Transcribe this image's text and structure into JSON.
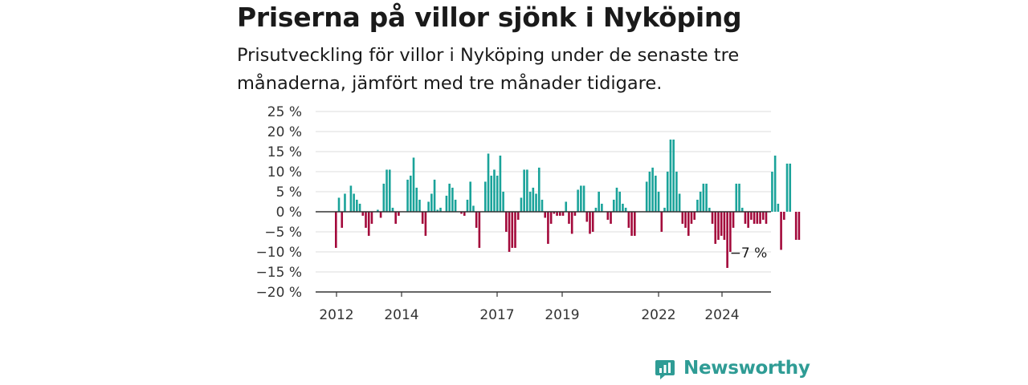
{
  "header": {
    "title": "Priserna på villor sjönk i Nyköping",
    "subtitle": "Prisutveckling för villor i Nyköping under de senaste tre månaderna, jämfört med tre månader tidigare."
  },
  "brand": {
    "name": "Newsworthy",
    "icon": "newsworthy-logo-icon",
    "color": "#2f9c95"
  },
  "chart_data": {
    "type": "bar",
    "x_labels": [
      "2012",
      "2014",
      "2017",
      "2019",
      "2022",
      "2024"
    ],
    "y_ticks": [
      "25 %",
      "20 %",
      "15 %",
      "10 %",
      "5 %",
      "0 %",
      "−5 %",
      "−10 %",
      "−15 %",
      "−20 %"
    ],
    "ylim": [
      -20,
      25
    ],
    "grid": true,
    "colors": {
      "positive": "#1aa39a",
      "negative": "#a3093b",
      "grid": "#dcdcdc",
      "axis": "#333333"
    },
    "annotation": {
      "label": "−7 %"
    },
    "values": [
      -9,
      3.5,
      -4,
      4.5,
      0,
      6.5,
      4.5,
      3,
      2,
      -1,
      -4,
      -6,
      -3,
      0,
      0.5,
      -1.5,
      7,
      10.5,
      10.5,
      1,
      -3,
      -1,
      0,
      0,
      8,
      9,
      13.5,
      6,
      3,
      -3,
      -6,
      2.5,
      4.5,
      8,
      0.5,
      1,
      0,
      4,
      7,
      6,
      3,
      0,
      -0.5,
      -1,
      3,
      7.5,
      1.5,
      -4,
      -9,
      0,
      7.5,
      14.5,
      9,
      10.5,
      9,
      14,
      5,
      -5,
      -10,
      -9,
      -9,
      -2,
      3.5,
      10.5,
      10.5,
      5,
      6,
      4.5,
      11,
      3,
      -1.5,
      -8,
      -3,
      -0.5,
      -1,
      -1,
      -1,
      2.5,
      -3,
      -5.5,
      -1,
      5.5,
      6.5,
      6.5,
      -2.5,
      -5.5,
      -5,
      1,
      5,
      2,
      0,
      -2,
      -3,
      3,
      6,
      5,
      2,
      1,
      -4,
      -6,
      -6,
      0,
      0,
      0,
      7.5,
      10,
      11,
      9,
      5,
      -5,
      1,
      10,
      18,
      18,
      10,
      4.5,
      -3,
      -4,
      -6,
      -3,
      -2,
      3,
      5,
      7,
      7,
      1,
      -3,
      -8,
      -7,
      -6,
      -7,
      -14,
      -10,
      -4,
      7,
      7,
      1,
      -3,
      -4,
      -2,
      -3,
      -3,
      -3,
      -2,
      -3,
      0,
      10,
      14,
      2,
      -9.5,
      -2,
      12,
      12,
      0,
      -7,
      -7
    ]
  }
}
